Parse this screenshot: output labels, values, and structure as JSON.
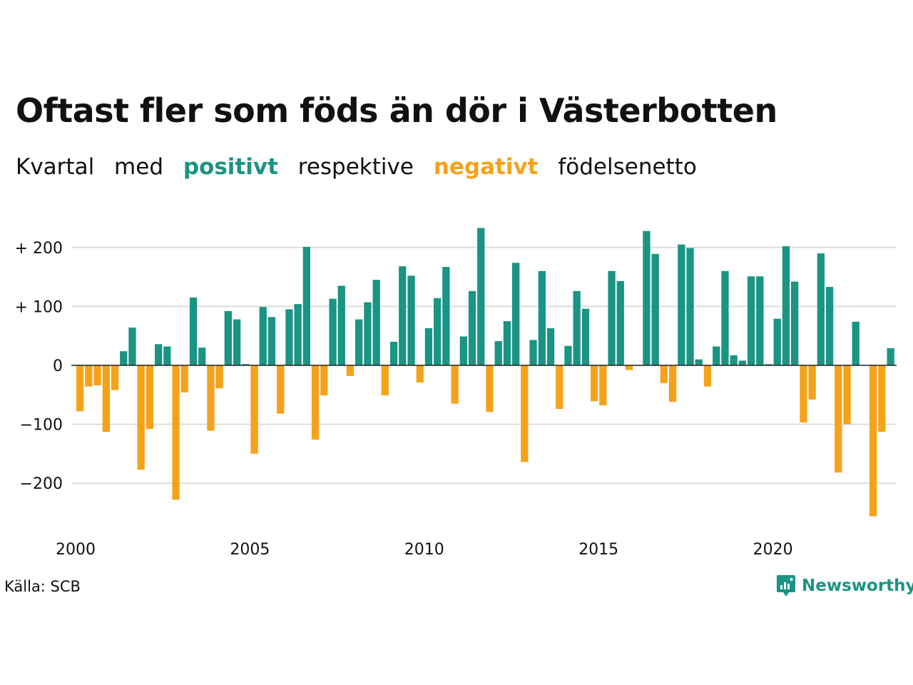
{
  "title": "Oftast fler som föds än dör i Västerbotten",
  "subtitle": {
    "w1": "Kvartal",
    "w2": "med",
    "pos": "positivt",
    "w3": "respektive",
    "neg": "negativt",
    "w4": "födelsenetto"
  },
  "colors": {
    "positive": "#1a9483",
    "negative": "#f5a21b"
  },
  "source": "Källa: SCB",
  "brand": {
    "name": "Newsworthy",
    "icon": "newsworthy-logo-icon"
  },
  "chart_data": {
    "type": "bar",
    "title": "Oftast fler som föds än dör i Västerbotten",
    "xlabel": "",
    "ylabel": "",
    "ylim": [
      -270,
      240
    ],
    "yticks": [
      200,
      100,
      0,
      -100,
      -200
    ],
    "ytick_labels": [
      "+ 200",
      "+ 100",
      "0",
      "−100",
      "−200"
    ],
    "xticks": [
      2000,
      2005,
      2010,
      2015,
      2020
    ],
    "xtick_labels": [
      "2000",
      "2005",
      "2010",
      "2015",
      "2020"
    ],
    "x_start": 2000,
    "grid": true,
    "values": [
      -78,
      -36,
      -34,
      -113,
      -42,
      24,
      64,
      -177,
      -108,
      36,
      32,
      -228,
      -46,
      115,
      30,
      -111,
      -39,
      92,
      78,
      2,
      -150,
      99,
      82,
      -82,
      95,
      104,
      201,
      -126,
      -51,
      113,
      135,
      -18,
      78,
      107,
      145,
      -51,
      40,
      168,
      152,
      -29,
      63,
      114,
      167,
      -65,
      49,
      126,
      233,
      -79,
      41,
      75,
      174,
      -164,
      43,
      160,
      63,
      -74,
      33,
      126,
      96,
      -61,
      -68,
      160,
      143,
      -8,
      -1,
      228,
      189,
      -30,
      -62,
      205,
      199,
      10,
      -36,
      32,
      160,
      17,
      8,
      151,
      151,
      2,
      79,
      202,
      142,
      -97,
      -58,
      190,
      133,
      -182,
      -100,
      74,
      0,
      -256,
      -113,
      29
    ]
  }
}
